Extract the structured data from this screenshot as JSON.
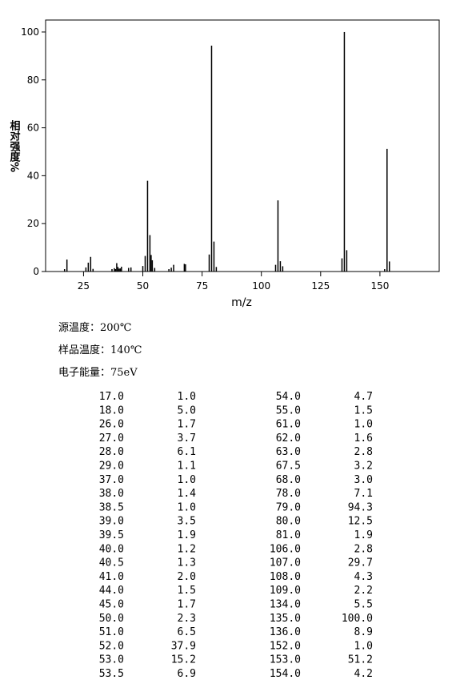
{
  "chart_data": {
    "type": "bar",
    "x": [
      17.0,
      18.0,
      26.0,
      27.0,
      28.0,
      29.0,
      37.0,
      38.0,
      38.5,
      39.0,
      39.5,
      40.0,
      40.5,
      41.0,
      44.0,
      45.0,
      50.0,
      51.0,
      52.0,
      53.0,
      53.5,
      54.0,
      55.0,
      61.0,
      62.0,
      63.0,
      67.5,
      68.0,
      78.0,
      79.0,
      80.0,
      81.0,
      106.0,
      107.0,
      108.0,
      109.0,
      134.0,
      135.0,
      136.0,
      152.0,
      153.0,
      154.0
    ],
    "x_labels": [
      "17.0",
      "18.0",
      "26.0",
      "27.0",
      "28.0",
      "29.0",
      "37.0",
      "38.0",
      "38.5",
      "39.0",
      "39.5",
      "40.0",
      "40.5",
      "41.0",
      "44.0",
      "45.0",
      "50.0",
      "51.0",
      "52.0",
      "53.0",
      "53.5",
      "54.0",
      "55.0",
      "61.0",
      "62.0",
      "63.0",
      "67.5",
      "68.0",
      "78.0",
      "79.0",
      "80.0",
      "81.0",
      "106.0",
      "107.0",
      "108.0",
      "109.0",
      "134.0",
      "135.0",
      "136.0",
      "152.0",
      "153.0",
      "154.0"
    ],
    "values": [
      1.0,
      5.0,
      1.7,
      3.7,
      6.1,
      1.1,
      1.0,
      1.4,
      1.0,
      3.5,
      1.9,
      1.2,
      1.3,
      2.0,
      1.5,
      1.7,
      2.3,
      6.5,
      37.9,
      15.2,
      6.9,
      4.7,
      1.5,
      1.0,
      1.6,
      2.8,
      3.2,
      3.0,
      7.1,
      94.3,
      12.5,
      1.9,
      2.8,
      29.7,
      4.3,
      2.2,
      5.5,
      100.0,
      8.9,
      1.0,
      51.2,
      4.2
    ],
    "value_labels": [
      "1.0",
      "5.0",
      "1.7",
      "3.7",
      "6.1",
      "1.1",
      "1.0",
      "1.4",
      "1.0",
      "3.5",
      "1.9",
      "1.2",
      "1.3",
      "2.0",
      "1.5",
      "1.7",
      "2.3",
      "6.5",
      "37.9",
      "15.2",
      "6.9",
      "4.7",
      "1.5",
      "1.0",
      "1.6",
      "2.8",
      "3.2",
      "3.0",
      "7.1",
      "94.3",
      "12.5",
      "1.9",
      "2.8",
      "29.7",
      "4.3",
      "2.2",
      "5.5",
      "100.0",
      "8.9",
      "1.0",
      "51.2",
      "4.2"
    ],
    "color": "#000000",
    "xlabel": "m/z",
    "ylabel": "相对强度%",
    "xlim": [
      9,
      175
    ],
    "xticks": [
      25,
      50,
      75,
      100,
      125,
      150
    ],
    "ylim": [
      0,
      105
    ],
    "yticks": [
      0,
      20,
      40,
      60,
      80,
      100
    ]
  },
  "conditions": [
    "源温度：200℃",
    "样品温度：140℃",
    "电子能量：75eV"
  ]
}
